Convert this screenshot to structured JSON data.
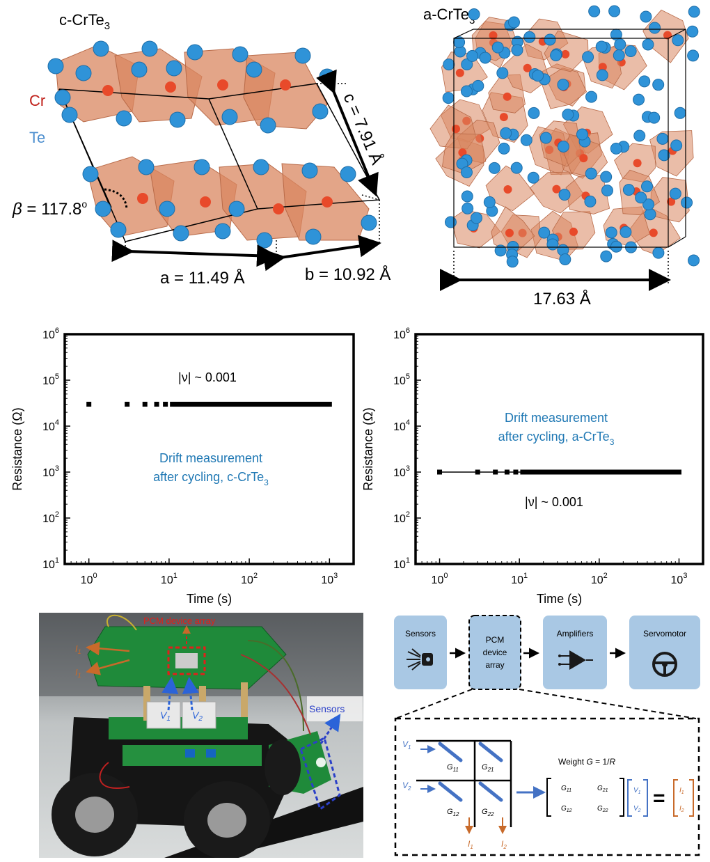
{
  "colors": {
    "cr_atom": "#e84a2a",
    "te_atom": "#2f93d8",
    "poly": "#d98760",
    "accent_blue": "#1f78b4",
    "box_fill": "#a9c8e4",
    "current_orange": "#c86a2a",
    "red_label": "#e0201a"
  },
  "crystal_c": {
    "title_main": "c-CrTe",
    "title_sub": "3",
    "cr_label": "Cr",
    "te_label": "Te",
    "beta_symbol": "β",
    "beta_value": " = 117.8",
    "beta_deg": "o",
    "a_label": "a = 11.49 Å",
    "b_label": "b = 10.92 Å",
    "c_label": "c = 7.91 Å"
  },
  "crystal_a": {
    "title_main": "a-CrTe",
    "title_sub": "3",
    "size_label": "17.63 Å"
  },
  "chart_data": [
    {
      "type": "scatter",
      "title": "",
      "xlabel": "Time (s)",
      "ylabel": "Resistance (Ω)",
      "xscale": "log",
      "yscale": "log",
      "xlim": [
        0.5,
        2000
      ],
      "ylim": [
        10,
        1000000
      ],
      "xticks": [
        "10^0",
        "10^1",
        "10^2",
        "10^3"
      ],
      "yticks": [
        "10^1",
        "10^2",
        "10^3",
        "10^4",
        "10^5",
        "10^6"
      ],
      "annotation_nu": "|ν| ~ 0.001",
      "annotation_line1": "Drift measurement",
      "annotation_line2": "after cycling, c-CrTe",
      "annotation_line2_sub": "3",
      "series": [
        {
          "name": "c-CrTe3",
          "x_start": 1,
          "x_end": 1000,
          "y": 30000
        }
      ]
    },
    {
      "type": "line",
      "title": "",
      "xlabel": "Time (s)",
      "ylabel": "Resistance (Ω)",
      "xscale": "log",
      "yscale": "log",
      "xlim": [
        0.5,
        2000
      ],
      "ylim": [
        10,
        1000000
      ],
      "xticks": [
        "10^0",
        "10^1",
        "10^2",
        "10^3"
      ],
      "yticks": [
        "10^1",
        "10^2",
        "10^3",
        "10^4",
        "10^5",
        "10^6"
      ],
      "annotation_nu": "|ν| ~ 0.001",
      "annotation_line1": "Drift measurement",
      "annotation_line2": "after cycling, a-CrTe",
      "annotation_line2_sub": "3",
      "series": [
        {
          "name": "a-CrTe3",
          "x_start": 1,
          "x_end": 1000,
          "y": 1000
        }
      ]
    }
  ],
  "photo": {
    "pcm_label": "PCM device array",
    "sensors_label": "Sensors",
    "i1_label": "I",
    "i1_sub": "1",
    "v1_label": "V",
    "v1_sub": "1",
    "v2_label": "V",
    "v2_sub": "2"
  },
  "flow": {
    "boxes": [
      {
        "label": "Sensors",
        "icon": "sensor-icon"
      },
      {
        "label": "PCM device array",
        "icon": ""
      },
      {
        "label": "Amplifiers",
        "icon": "amplifier-icon"
      },
      {
        "label": "Servomotor",
        "icon": "steering-wheel-icon"
      }
    ]
  },
  "crossbar": {
    "v1": "V",
    "v1_sub": "1",
    "v2": "V",
    "v2_sub": "2",
    "g11": "G",
    "g11_sub": "11",
    "g21": "G",
    "g21_sub": "21",
    "g12": "G",
    "g12_sub": "12",
    "g22": "G",
    "g22_sub": "22",
    "i1": "I",
    "i1_sub": "1",
    "i2": "I",
    "i2_sub": "2",
    "weight_prefix": "Weight ",
    "weight_g": "G",
    "weight_eq": " = 1/",
    "weight_r": "R",
    "equals": "="
  }
}
